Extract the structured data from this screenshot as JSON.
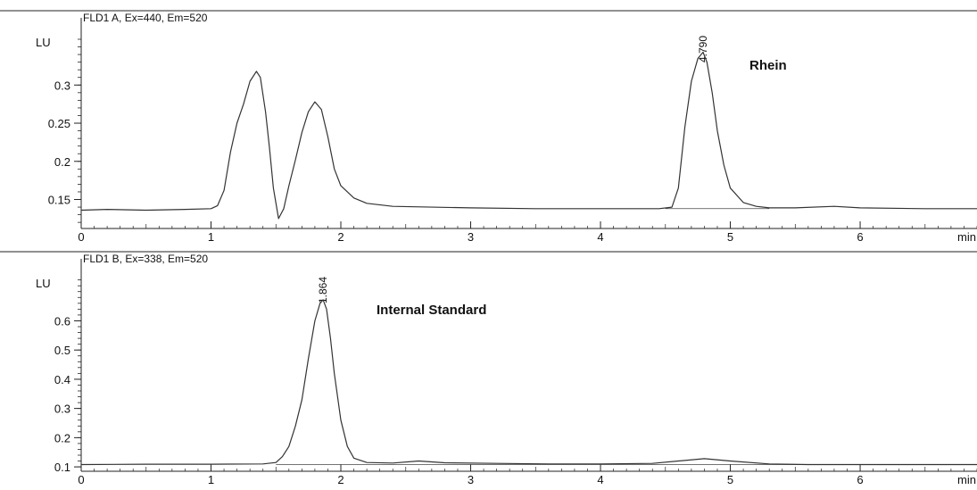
{
  "chart_data": [
    {
      "type": "line",
      "panel_title": "FLD1 A, Ex=440, Em=520",
      "ylabel": "LU",
      "xlabel": "min",
      "xlim": [
        0,
        6.9
      ],
      "ylim": [
        0.112,
        0.367
      ],
      "x_ticks": [
        "0",
        "1",
        "2",
        "3",
        "4",
        "5",
        "6"
      ],
      "x_tick_values": [
        0,
        1,
        2,
        3,
        4,
        5,
        6
      ],
      "y_ticks": [
        "0.15",
        "0.2",
        "0.25",
        "0.3"
      ],
      "y_tick_values": [
        0.15,
        0.2,
        0.25,
        0.3
      ],
      "grid": false,
      "series": [
        {
          "x": [
            0,
            0.2,
            0.5,
            0.8,
            1.0,
            1.05,
            1.1,
            1.15,
            1.2,
            1.25,
            1.3,
            1.35,
            1.38,
            1.42,
            1.45,
            1.48,
            1.52,
            1.56,
            1.6,
            1.65,
            1.7,
            1.75,
            1.8,
            1.85,
            1.9,
            1.95,
            2.0,
            2.1,
            2.2,
            2.4,
            3.0,
            3.5,
            4.0,
            4.45,
            4.55,
            4.6,
            4.65,
            4.7,
            4.75,
            4.79,
            4.82,
            4.86,
            4.9,
            4.95,
            5.0,
            5.1,
            5.2,
            5.3,
            5.5,
            5.8,
            6.0,
            6.5,
            6.9
          ],
          "y": [
            0.136,
            0.137,
            0.136,
            0.137,
            0.138,
            0.142,
            0.162,
            0.212,
            0.25,
            0.275,
            0.305,
            0.318,
            0.31,
            0.265,
            0.218,
            0.165,
            0.125,
            0.138,
            0.168,
            0.202,
            0.238,
            0.265,
            0.278,
            0.268,
            0.232,
            0.19,
            0.168,
            0.152,
            0.145,
            0.141,
            0.139,
            0.138,
            0.138,
            0.138,
            0.14,
            0.165,
            0.245,
            0.305,
            0.335,
            0.343,
            0.33,
            0.29,
            0.24,
            0.195,
            0.165,
            0.146,
            0.141,
            0.139,
            0.139,
            0.141,
            0.139,
            0.138,
            0.138
          ]
        }
      ],
      "baseline": {
        "x": [
          4.5,
          5.3
        ],
        "y": [
          0.138,
          0.138
        ]
      },
      "peak_label": {
        "text": "4.790",
        "x": 4.79
      },
      "compound_label": "Rhein"
    },
    {
      "type": "line",
      "panel_title": "FLD1 B, Ex=338, Em=520",
      "ylabel": "LU",
      "xlabel": "min",
      "xlim": [
        0,
        6.9
      ],
      "ylim": [
        0.085,
        0.745
      ],
      "x_ticks": [
        "0",
        "1",
        "2",
        "3",
        "4",
        "5",
        "6"
      ],
      "x_tick_values": [
        0,
        1,
        2,
        3,
        4,
        5,
        6
      ],
      "y_ticks": [
        "0.1",
        "0.2",
        "0.3",
        "0.4",
        "0.5",
        "0.6"
      ],
      "y_tick_values": [
        0.1,
        0.2,
        0.3,
        0.4,
        0.5,
        0.6
      ],
      "grid": false,
      "series": [
        {
          "x": [
            0,
            0.5,
            1.0,
            1.4,
            1.5,
            1.55,
            1.6,
            1.65,
            1.7,
            1.75,
            1.8,
            1.84,
            1.864,
            1.89,
            1.92,
            1.95,
            2.0,
            2.05,
            2.1,
            2.2,
            2.4,
            2.6,
            2.8,
            3.2,
            3.6,
            4.0,
            4.4,
            4.6,
            4.8,
            5.0,
            5.3,
            5.6,
            6.0,
            6.5,
            6.9
          ],
          "y": [
            0.108,
            0.109,
            0.109,
            0.11,
            0.115,
            0.135,
            0.17,
            0.24,
            0.33,
            0.47,
            0.6,
            0.66,
            0.672,
            0.64,
            0.54,
            0.42,
            0.26,
            0.17,
            0.13,
            0.115,
            0.113,
            0.12,
            0.114,
            0.112,
            0.11,
            0.11,
            0.112,
            0.12,
            0.128,
            0.12,
            0.11,
            0.108,
            0.108,
            0.108,
            0.108
          ]
        }
      ],
      "baseline": {
        "x": [
          1.5,
          6.9
        ],
        "y": [
          0.108,
          0.108
        ]
      },
      "peak_label": {
        "text": "1.864",
        "x": 1.864
      },
      "compound_label": "Internal Standard"
    }
  ]
}
